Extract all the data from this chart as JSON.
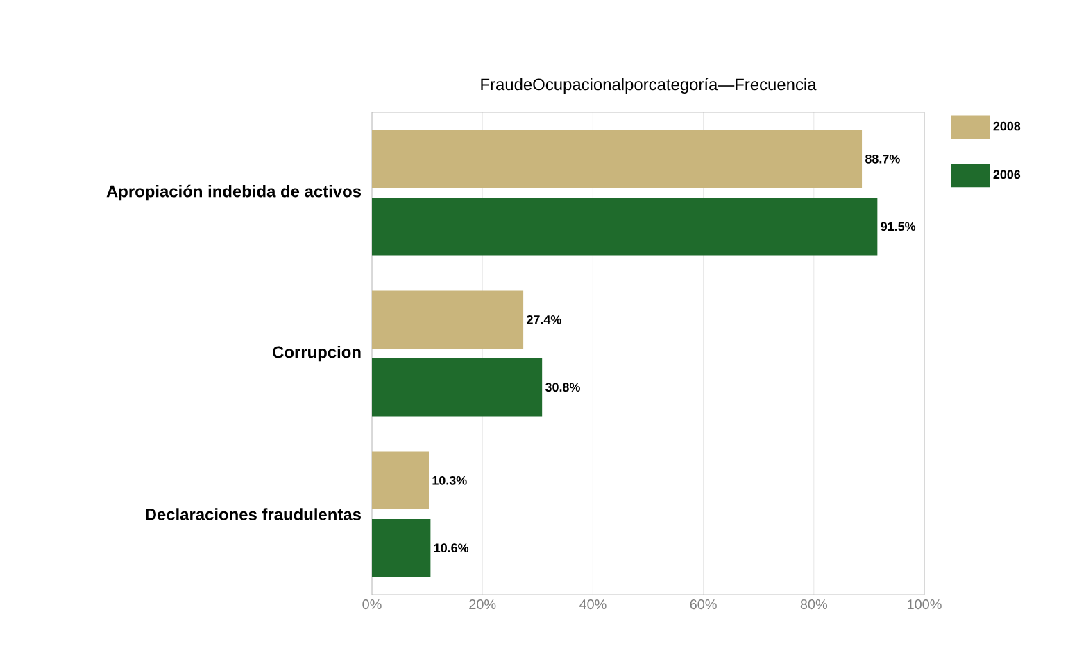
{
  "chart_data": {
    "type": "bar",
    "orientation": "horizontal",
    "title": "FraudeOcupacionalporcategoría—Frecuencia",
    "categories": [
      "Apropiación indebida de activos",
      "Corrupcion",
      "Declaraciones fraudulentas"
    ],
    "series": [
      {
        "name": "2008",
        "color": "#c9b57c",
        "values": [
          88.7,
          27.4,
          10.3
        ],
        "value_labels": [
          "88.7%",
          "27.4%",
          "10.3%"
        ]
      },
      {
        "name": "2006",
        "color": "#1f6b2c",
        "values": [
          91.5,
          30.8,
          10.6
        ],
        "value_labels": [
          "91.5%",
          "30.8%",
          "10.6%"
        ]
      }
    ],
    "xlim": [
      0,
      100
    ],
    "xticks": [
      {
        "value": 0,
        "label": "0%"
      },
      {
        "value": 20,
        "label": "20%"
      },
      {
        "value": 40,
        "label": "40%"
      },
      {
        "value": 60,
        "label": "60%"
      },
      {
        "value": 80,
        "label": "80%"
      },
      {
        "value": 100,
        "label": "100%"
      }
    ],
    "grid": "x",
    "legend": "top right"
  }
}
